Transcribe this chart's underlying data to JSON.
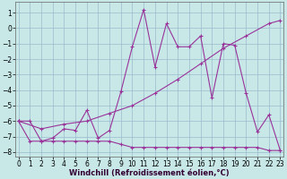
{
  "background_color": "#c8e8e8",
  "grid_color": "#99bbcc",
  "line_color": "#993399",
  "xlabel": "Windchill (Refroidissement éolien,°C)",
  "xlabel_fontsize": 6.0,
  "tick_fontsize": 5.5,
  "xlim": [
    -0.3,
    23.3
  ],
  "ylim": [
    -8.3,
    1.7
  ],
  "yticks": [
    1,
    0,
    -1,
    -2,
    -3,
    -4,
    -5,
    -6,
    -7,
    -8
  ],
  "xticks": [
    0,
    1,
    2,
    3,
    4,
    5,
    6,
    7,
    8,
    9,
    10,
    11,
    12,
    13,
    14,
    15,
    16,
    17,
    18,
    19,
    20,
    21,
    22,
    23
  ],
  "series": [
    {
      "x": [
        0,
        1,
        2,
        3,
        4,
        5,
        6,
        7,
        8,
        9,
        10,
        11,
        12,
        13,
        14,
        15,
        16,
        17,
        18,
        19,
        20,
        21,
        22,
        23
      ],
      "y": [
        -6.0,
        -6.0,
        -7.3,
        -7.1,
        -6.5,
        -6.6,
        -5.3,
        -7.1,
        -6.6,
        -4.1,
        -1.2,
        1.2,
        -2.5,
        0.3,
        -1.2,
        -1.2,
        -0.5,
        -4.5,
        -1.0,
        -1.1,
        -4.2,
        -6.7,
        -5.6,
        -7.9
      ]
    },
    {
      "x": [
        0,
        2,
        4,
        6,
        8,
        10,
        12,
        14,
        16,
        18,
        20,
        22,
        23
      ],
      "y": [
        -6.0,
        -6.5,
        -6.2,
        -6.0,
        -5.5,
        -5.0,
        -4.2,
        -3.3,
        -2.3,
        -1.3,
        -0.5,
        0.3,
        0.5
      ]
    },
    {
      "x": [
        0,
        1,
        2,
        3,
        4,
        5,
        6,
        7,
        8,
        9,
        10,
        11,
        12,
        13,
        14,
        15,
        16,
        17,
        18,
        19,
        20,
        21,
        22,
        23
      ],
      "y": [
        -6.0,
        -7.3,
        -7.3,
        -7.3,
        -7.3,
        -7.3,
        -7.3,
        -7.3,
        -7.3,
        -7.5,
        -7.7,
        -7.7,
        -7.7,
        -7.7,
        -7.7,
        -7.7,
        -7.7,
        -7.7,
        -7.7,
        -7.7,
        -7.7,
        -7.7,
        -7.9,
        -7.9
      ]
    }
  ]
}
